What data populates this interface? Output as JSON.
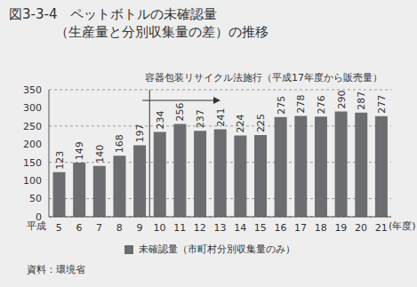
{
  "chart_data": {
    "type": "bar",
    "title": "図3-3-4　ペットボトルの未確認量\n（生産量と分別収集量の差）の推移",
    "categories": [
      "5",
      "6",
      "7",
      "8",
      "9",
      "10",
      "11",
      "12",
      "13",
      "14",
      "15",
      "16",
      "17",
      "18",
      "19",
      "20",
      "21"
    ],
    "series": [
      {
        "name": "未確認量（市町村分別収集量のみ）",
        "color": "#6b6d70",
        "values": [
          123,
          149,
          140,
          168,
          197,
          234,
          256,
          237,
          241,
          224,
          225,
          275,
          278,
          276,
          290,
          287,
          277
        ]
      }
    ],
    "ylim": [
      0,
      350
    ],
    "yticks": [
      0,
      50,
      100,
      150,
      200,
      250,
      300,
      350
    ],
    "grid": true,
    "data_labels": true,
    "legend": "bottom",
    "x_label": "(年度)",
    "x_prefix": "平成",
    "annotations": [
      {
        "text": "容器包装リサイクル法施行（平成17年度から販売量）",
        "x": "10"
      }
    ],
    "source": "資料：環境省"
  }
}
